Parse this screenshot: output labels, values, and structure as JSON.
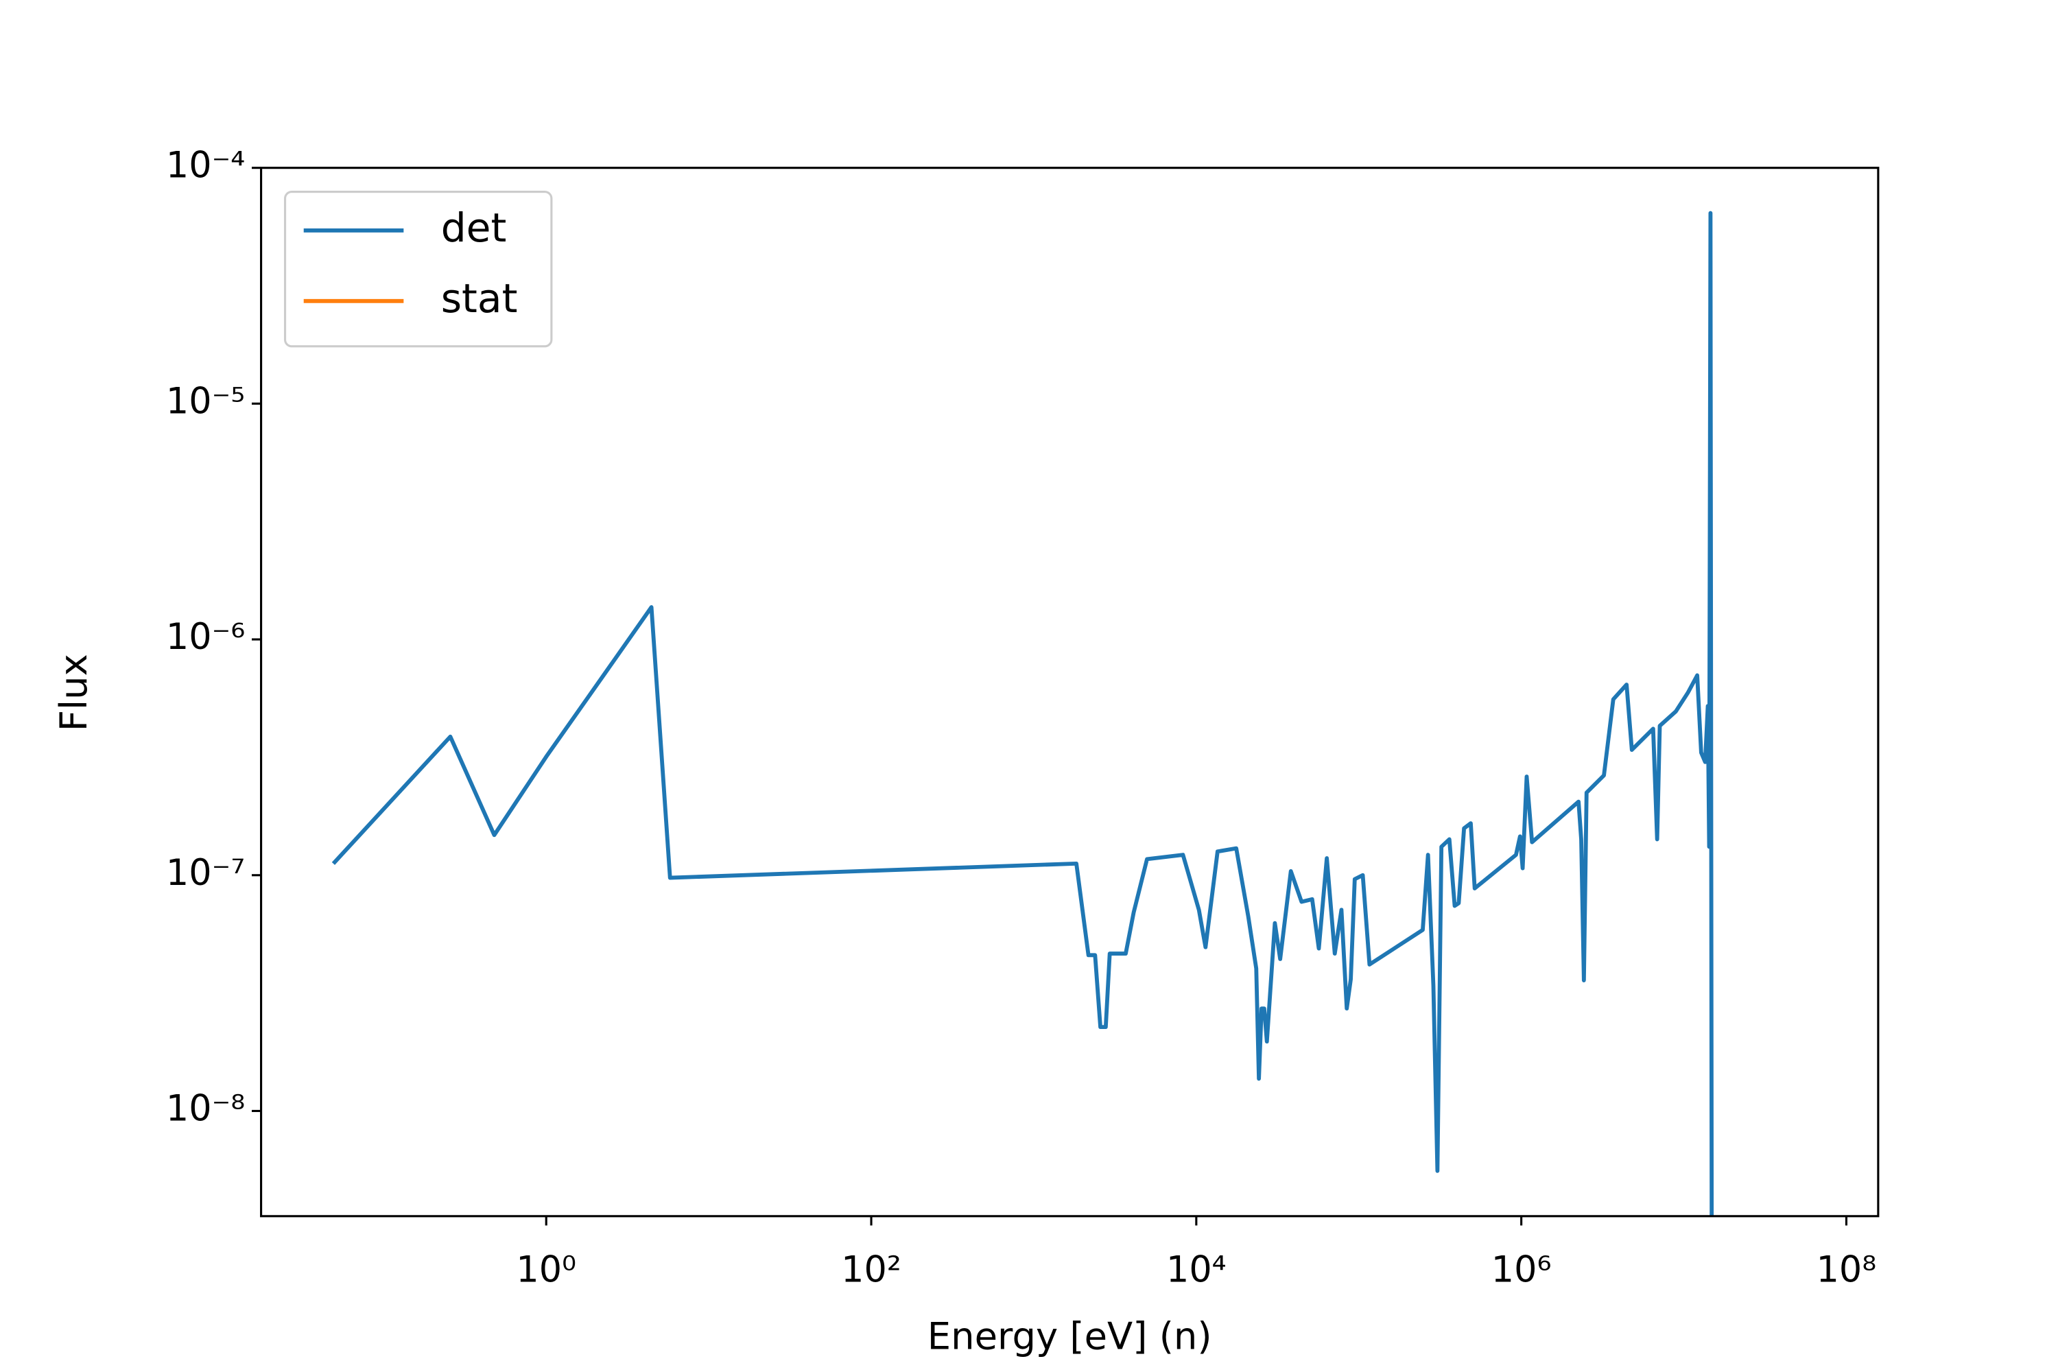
{
  "chart_data": {
    "type": "line",
    "xlabel": "Energy [eV] (n)",
    "ylabel": "Flux",
    "xscale": "log",
    "yscale": "log",
    "legend": "upper left",
    "xlim": [
      0.0176,
      157000000
    ],
    "ylim": [
      3.58e-09,
      0.0001
    ],
    "xticks": [
      {
        "value": 1,
        "label": "10⁰"
      },
      {
        "value": 100,
        "label": "10²"
      },
      {
        "value": 10000,
        "label": "10⁴"
      },
      {
        "value": 1000000,
        "label": "10⁶"
      },
      {
        "value": 100000000,
        "label": "10⁸"
      }
    ],
    "yticks": [
      {
        "value": 1e-08,
        "label": "10⁻⁸"
      },
      {
        "value": 1e-07,
        "label": "10⁻⁷"
      },
      {
        "value": 1e-06,
        "label": "10⁻⁶"
      },
      {
        "value": 1e-05,
        "label": "10⁻⁵"
      },
      {
        "value": 0.0001,
        "label": "10⁻⁴"
      }
    ],
    "series": [
      {
        "name": "det",
        "color": "#1f77b4",
        "x": [
          0.049,
          0.257,
          0.479,
          1,
          1.66,
          4.44,
          5.78,
          1829,
          2170,
          2384,
          2570,
          2773,
          2934,
          3680,
          4120,
          4977,
          8280,
          10380,
          11400,
          13520,
          17620,
          20890,
          23390,
          24280,
          25220,
          26180,
          27190,
          30450,
          32830,
          38190,
          44440,
          51650,
          56770,
          63560,
          71150,
          78210,
          84330,
          89250,
          94420,
          105800,
          116400,
          247400,
          266700,
          287700,
          304700,
          322400,
          360800,
          389100,
          412000,
          444300,
          488500,
          516700,
          927400,
          982000,
          1019000,
          1079000,
          1164000,
          2250000,
          2337000,
          2427000,
          2521000,
          3223000,
          3681000,
          4444000,
          4789000,
          6475000,
          6853000,
          7114000,
          8928000,
          10590000,
          12090000,
          12790000,
          13530000,
          14050000,
          14320000,
          14590000,
          14870000
        ],
        "values": [
          1.12e-07,
          3.87e-07,
          1.48e-07,
          3.18e-07,
          5.22e-07,
          1.37e-06,
          9.75e-08,
          1.12e-07,
          4.58e-08,
          4.58e-08,
          2.27e-08,
          2.27e-08,
          4.65e-08,
          4.65e-08,
          6.95e-08,
          1.17e-07,
          1.22e-07,
          7.13e-08,
          4.95e-08,
          1.26e-07,
          1.3e-07,
          6.68e-08,
          4.02e-08,
          1.37e-08,
          2.72e-08,
          2.72e-08,
          1.97e-08,
          6.26e-08,
          4.41e-08,
          1.04e-07,
          7.71e-08,
          7.91e-08,
          4.89e-08,
          1.18e-07,
          4.65e-08,
          7.13e-08,
          2.72e-08,
          3.62e-08,
          9.62e-08,
          1e-07,
          4.18e-08,
          5.86e-08,
          1.22e-07,
          3.4e-08,
          5.57e-09,
          1.32e-07,
          1.42e-07,
          7.41e-08,
          7.61e-08,
          1.58e-07,
          1.66e-07,
          8.79e-08,
          1.22e-07,
          1.46e-07,
          1.07e-07,
          2.62e-07,
          1.38e-07,
          2.05e-07,
          1.42e-07,
          3.58e-08,
          2.24e-07,
          2.65e-07,
          5.57e-07,
          6.43e-07,
          3.4e-07,
          4.18e-07,
          1.42e-07,
          4.3e-07,
          4.95e-07,
          5.94e-07,
          7.04e-07,
          3.31e-07,
          3.02e-07,
          5.22e-07,
          1.32e-07,
          6.43e-05,
          1e-09
        ]
      },
      {
        "name": "stat",
        "color": "#ff7f0e",
        "x": [],
        "values": []
      }
    ]
  }
}
